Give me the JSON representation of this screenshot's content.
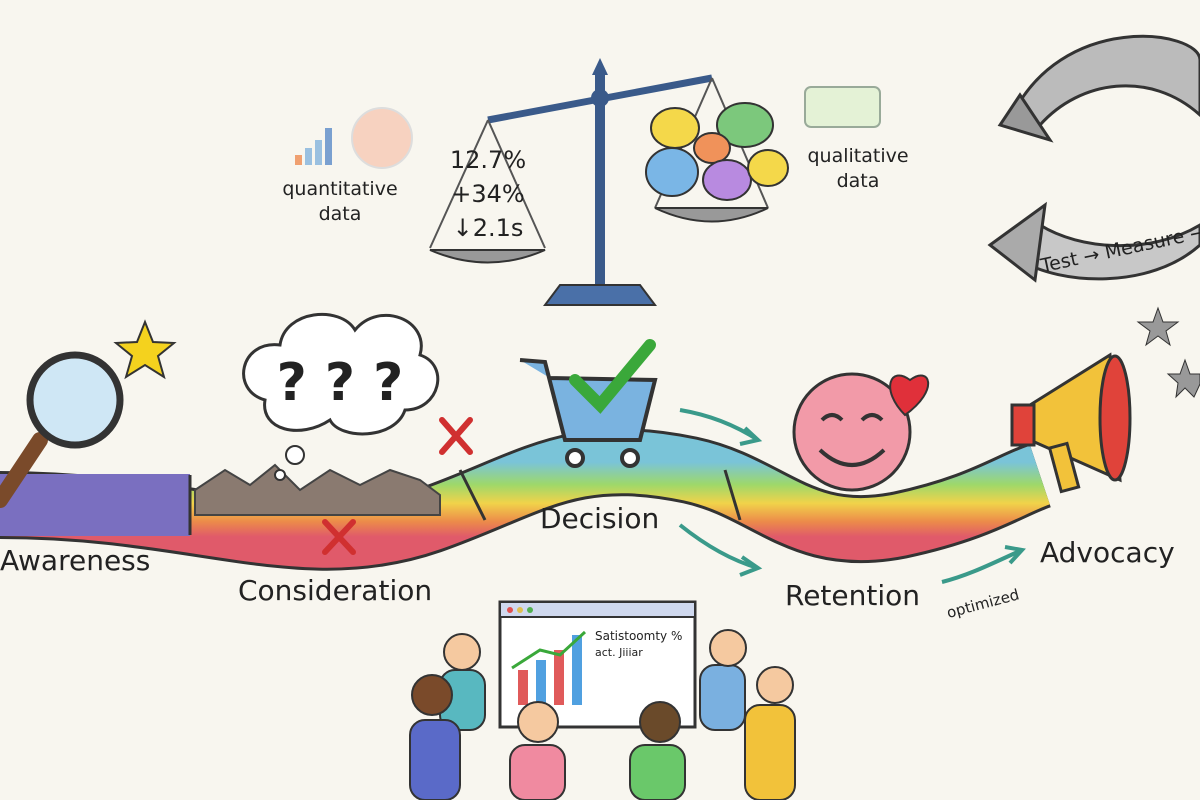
{
  "balance": {
    "left_values": [
      "12.7%",
      "+34%",
      "↓2.1s"
    ],
    "left_label_lines": [
      "quantitative",
      "data"
    ],
    "right_label_lines": [
      "qualitative",
      "data"
    ]
  },
  "cycle_label": "Test → Measure →",
  "journey": {
    "stages": [
      "Awareness",
      "Consideration",
      "Decision",
      "Retention",
      "Advocacy"
    ],
    "annotation": "optimized"
  },
  "dashboard": {
    "title": "Satistoomty %",
    "subtitle": "act. Jiiiar"
  }
}
